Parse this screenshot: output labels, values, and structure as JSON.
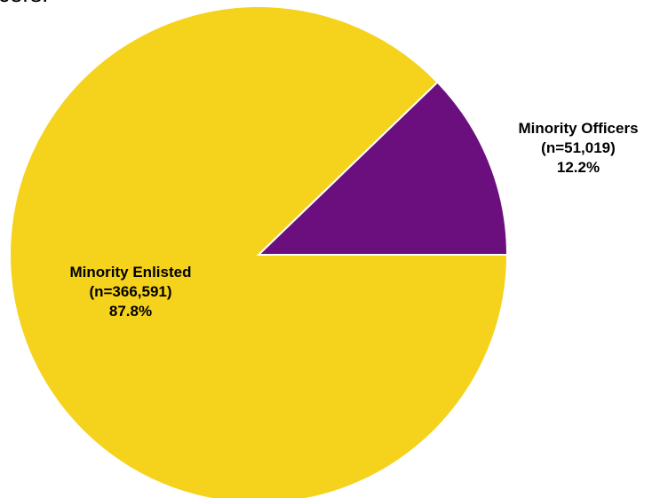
{
  "page": {
    "caption_fragment": "cers."
  },
  "chart_data": {
    "type": "pie",
    "title": "",
    "start_angle_deg": 0,
    "direction": "counterclockwise",
    "slices": [
      {
        "name": "Minority Officers",
        "n_label": "(n=51,019)",
        "percent_label": "12.2%",
        "value": 51019,
        "percent": 12.2,
        "color": "#6B0E7E"
      },
      {
        "name": "Minority Enlisted",
        "n_label": "(n=366,591)",
        "percent_label": "87.8%",
        "value": 366591,
        "percent": 87.8,
        "color": "#F5D21C"
      }
    ],
    "legend": "none",
    "grid": false
  }
}
